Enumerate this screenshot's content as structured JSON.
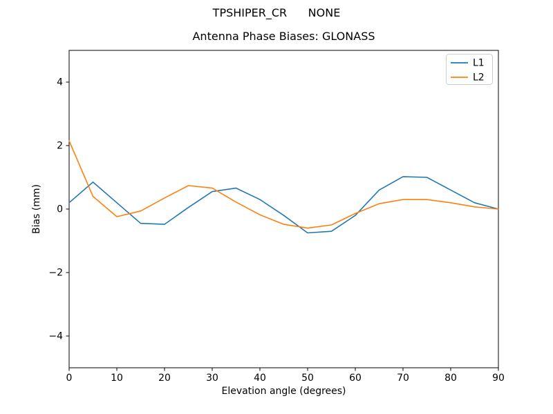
{
  "titles": {
    "suptitle": "TPSHIPER_CR      NONE",
    "axes_title": "Antenna Phase Biases: GLONASS"
  },
  "chart_data": {
    "type": "line",
    "title": "TPSHIPER_CR      NONE",
    "subtitle": "Antenna Phase Biases: GLONASS",
    "xlabel": "Elevation angle (degrees)",
    "ylabel": "Bias (mm)",
    "xlim": [
      0,
      90
    ],
    "ylim": [
      -5,
      5
    ],
    "xticks": [
      0,
      10,
      20,
      30,
      40,
      50,
      60,
      70,
      80,
      90
    ],
    "yticks": [
      -4,
      -2,
      0,
      2,
      4
    ],
    "grid": false,
    "legend": {
      "position": "upper right",
      "entries": [
        "L1",
        "L2"
      ]
    },
    "x": [
      0,
      5,
      10,
      15,
      20,
      25,
      30,
      35,
      40,
      45,
      50,
      55,
      60,
      65,
      70,
      75,
      80,
      85,
      90
    ],
    "series": [
      {
        "name": "L1",
        "color": "#1f77b4",
        "values": [
          0.2,
          0.85,
          0.2,
          -0.45,
          -0.48,
          0.05,
          0.55,
          0.66,
          0.3,
          -0.2,
          -0.75,
          -0.7,
          -0.2,
          0.6,
          1.02,
          1.0,
          0.6,
          0.2,
          0.0
        ]
      },
      {
        "name": "L2",
        "color": "#ff7f0e",
        "values": [
          2.15,
          0.4,
          -0.24,
          -0.06,
          0.35,
          0.74,
          0.66,
          0.22,
          -0.18,
          -0.48,
          -0.6,
          -0.5,
          -0.14,
          0.17,
          0.3,
          0.3,
          0.2,
          0.07,
          0.0
        ]
      }
    ]
  },
  "colors": {
    "l1": "#1f77b4",
    "l2": "#ff7f0e",
    "axis": "#000000",
    "legend_border": "#cccccc",
    "background": "#ffffff"
  }
}
